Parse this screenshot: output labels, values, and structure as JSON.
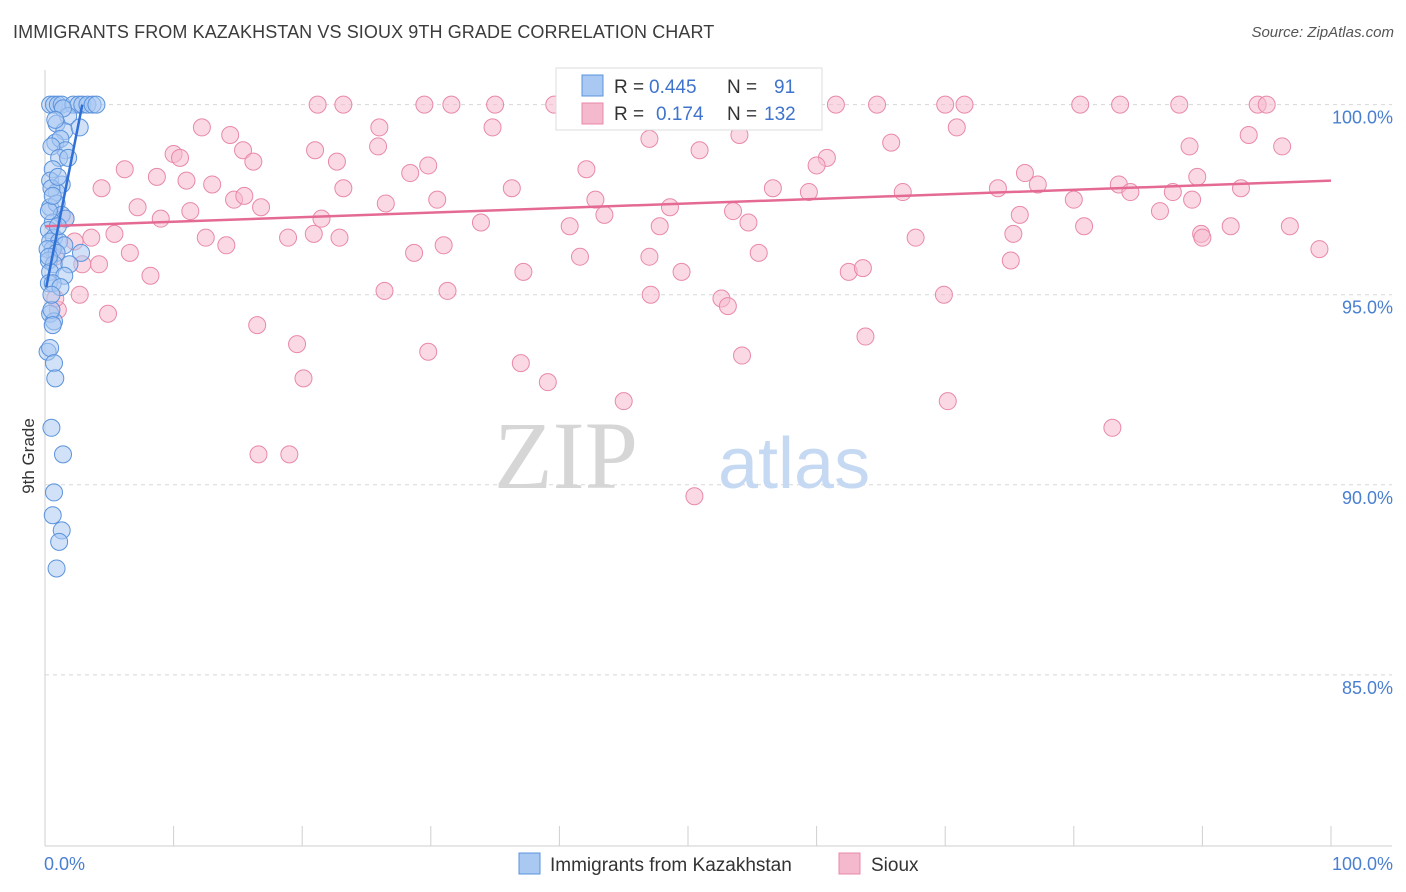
{
  "title": "IMMIGRANTS FROM KAZAKHSTAN VS SIOUX 9TH GRADE CORRELATION CHART",
  "source": "Source: ZipAtlas.com",
  "watermark": {
    "zip": "ZIP",
    "atlas": "atlas"
  },
  "colors": {
    "blue_fill": "#a9c8f2",
    "blue_stroke": "#5b93dc",
    "blue_line": "#2f70d6",
    "pink_fill": "#f5b9cd",
    "pink_stroke": "#e889a8",
    "pink_line": "#e46a94",
    "grid": "#d8d8d8",
    "axis_text": "#4a7fd0"
  },
  "legend": {
    "rows": [
      {
        "r_label": "R =",
        "r_value": "0.445",
        "n_label": "N =",
        "n_value": "91"
      },
      {
        "r_label": "R =",
        "r_value": "0.174",
        "n_label": "N =",
        "n_value": "132"
      }
    ]
  },
  "chart_data": {
    "type": "scatter",
    "title": "IMMIGRANTS FROM KAZAKHSTAN VS SIOUX 9TH GRADE CORRELATION CHART",
    "xlabel": "",
    "ylabel": "9th Grade",
    "xlim": [
      0,
      100
    ],
    "ylim": [
      80.5,
      100.7
    ],
    "x_tick_labels": [
      "0.0%",
      "100.0%"
    ],
    "y_ticks": [
      100,
      95,
      90,
      85
    ],
    "y_tick_labels": [
      "100.0%",
      "95.0%",
      "90.0%",
      "85.0%"
    ],
    "grid": "horizontal dashed",
    "legend_position": "top-center, bottom",
    "series": [
      {
        "name": "Immigrants from Kazakhstan",
        "R": 0.445,
        "N": 91,
        "trend": {
          "x": [
            0.1,
            2.9
          ],
          "y": [
            95.2,
            100.0
          ]
        },
        "points": [
          [
            0.4,
            100.0
          ],
          [
            0.7,
            100.0
          ],
          [
            1.0,
            100.0
          ],
          [
            1.3,
            100.0
          ],
          [
            2.2,
            100.0
          ],
          [
            2.6,
            100.0
          ],
          [
            2.9,
            100.0
          ],
          [
            3.3,
            100.0
          ],
          [
            3.7,
            100.0
          ],
          [
            4.0,
            100.0
          ],
          [
            1.8,
            99.7
          ],
          [
            0.9,
            99.5
          ],
          [
            1.5,
            99.3
          ],
          [
            2.7,
            99.4
          ],
          [
            0.8,
            99.0
          ],
          [
            1.2,
            99.1
          ],
          [
            1.6,
            98.8
          ],
          [
            0.5,
            98.9
          ],
          [
            1.1,
            98.6
          ],
          [
            1.8,
            98.6
          ],
          [
            0.6,
            98.3
          ],
          [
            0.4,
            98.0
          ],
          [
            1.3,
            97.9
          ],
          [
            0.9,
            97.7
          ],
          [
            0.5,
            97.8
          ],
          [
            0.4,
            97.3
          ],
          [
            0.9,
            97.4
          ],
          [
            1.3,
            97.1
          ],
          [
            1.6,
            97.0
          ],
          [
            0.6,
            96.9
          ],
          [
            0.3,
            96.7
          ],
          [
            0.7,
            96.5
          ],
          [
            0.4,
            96.4
          ],
          [
            1.1,
            96.4
          ],
          [
            1.5,
            96.3
          ],
          [
            0.6,
            96.2
          ],
          [
            0.2,
            96.2
          ],
          [
            0.9,
            96.1
          ],
          [
            2.8,
            96.1
          ],
          [
            0.3,
            95.9
          ],
          [
            0.7,
            95.8
          ],
          [
            1.9,
            95.8
          ],
          [
            0.4,
            95.6
          ],
          [
            1.5,
            95.5
          ],
          [
            0.3,
            95.3
          ],
          [
            0.6,
            95.3
          ],
          [
            1.2,
            95.2
          ],
          [
            0.4,
            94.5
          ],
          [
            0.7,
            94.3
          ],
          [
            0.5,
            94.6
          ],
          [
            0.6,
            94.2
          ],
          [
            0.2,
            93.5
          ],
          [
            0.4,
            93.6
          ],
          [
            0.7,
            93.2
          ],
          [
            0.8,
            92.8
          ],
          [
            0.5,
            91.5
          ],
          [
            1.4,
            90.8
          ],
          [
            0.7,
            89.8
          ],
          [
            0.6,
            89.2
          ],
          [
            1.3,
            88.8
          ],
          [
            1.1,
            88.5
          ],
          [
            0.9,
            87.8
          ],
          [
            0.3,
            97.2
          ],
          [
            1.0,
            98.1
          ],
          [
            0.3,
            96.0
          ],
          [
            1.0,
            96.8
          ],
          [
            0.6,
            97.6
          ],
          [
            1.4,
            99.9
          ],
          [
            0.5,
            95.0
          ],
          [
            0.8,
            99.6
          ]
        ]
      },
      {
        "name": "Sioux",
        "R": 0.174,
        "N": 132,
        "trend": {
          "x": [
            0,
            100
          ],
          "y": [
            96.8,
            98.0
          ]
        },
        "points": [
          [
            21.2,
            100.0
          ],
          [
            23.2,
            100.0
          ],
          [
            29.5,
            100.0
          ],
          [
            31.6,
            100.0
          ],
          [
            35.0,
            100.0
          ],
          [
            39.6,
            100.0
          ],
          [
            55.2,
            100.0
          ],
          [
            58.1,
            100.0
          ],
          [
            61.5,
            100.0
          ],
          [
            64.7,
            100.0
          ],
          [
            70.0,
            100.0
          ],
          [
            71.5,
            100.0
          ],
          [
            80.5,
            100.0
          ],
          [
            83.6,
            100.0
          ],
          [
            88.2,
            100.0
          ],
          [
            94.3,
            100.0
          ],
          [
            95.0,
            100.0
          ],
          [
            12.2,
            99.4
          ],
          [
            14.4,
            99.2
          ],
          [
            26.0,
            99.4
          ],
          [
            34.8,
            99.4
          ],
          [
            47.0,
            99.1
          ],
          [
            54.0,
            99.2
          ],
          [
            65.8,
            99.0
          ],
          [
            70.9,
            99.4
          ],
          [
            89.0,
            98.9
          ],
          [
            93.6,
            99.2
          ],
          [
            96.2,
            98.9
          ],
          [
            10.0,
            98.7
          ],
          [
            15.4,
            98.8
          ],
          [
            21.0,
            98.8
          ],
          [
            16.2,
            98.5
          ],
          [
            10.5,
            98.6
          ],
          [
            22.7,
            98.5
          ],
          [
            25.9,
            98.9
          ],
          [
            28.4,
            98.2
          ],
          [
            29.8,
            98.4
          ],
          [
            42.1,
            98.3
          ],
          [
            50.9,
            98.8
          ],
          [
            60.8,
            98.6
          ],
          [
            76.2,
            98.2
          ],
          [
            83.5,
            97.9
          ],
          [
            89.6,
            98.1
          ],
          [
            6.2,
            98.3
          ],
          [
            8.7,
            98.1
          ],
          [
            11.0,
            98.0
          ],
          [
            4.4,
            97.8
          ],
          [
            13.0,
            97.9
          ],
          [
            14.7,
            97.5
          ],
          [
            15.5,
            97.6
          ],
          [
            23.2,
            97.8
          ],
          [
            30.5,
            97.5
          ],
          [
            36.3,
            97.8
          ],
          [
            42.8,
            97.5
          ],
          [
            48.6,
            97.3
          ],
          [
            56.6,
            97.8
          ],
          [
            59.4,
            97.7
          ],
          [
            60.0,
            98.4
          ],
          [
            66.7,
            97.7
          ],
          [
            74.1,
            97.8
          ],
          [
            77.2,
            97.9
          ],
          [
            80.0,
            97.5
          ],
          [
            84.4,
            97.7
          ],
          [
            87.7,
            97.7
          ],
          [
            89.2,
            97.5
          ],
          [
            93.0,
            97.8
          ],
          [
            7.2,
            97.3
          ],
          [
            9.0,
            97.0
          ],
          [
            11.3,
            97.2
          ],
          [
            16.8,
            97.3
          ],
          [
            21.5,
            97.0
          ],
          [
            26.5,
            97.4
          ],
          [
            33.9,
            96.9
          ],
          [
            40.8,
            96.8
          ],
          [
            43.5,
            97.1
          ],
          [
            47.8,
            96.8
          ],
          [
            53.5,
            97.2
          ],
          [
            54.7,
            96.9
          ],
          [
            75.8,
            97.1
          ],
          [
            80.8,
            96.8
          ],
          [
            86.7,
            97.2
          ],
          [
            92.2,
            96.8
          ],
          [
            5.4,
            96.6
          ],
          [
            3.6,
            96.5
          ],
          [
            12.5,
            96.5
          ],
          [
            14.1,
            96.3
          ],
          [
            18.9,
            96.5
          ],
          [
            20.9,
            96.6
          ],
          [
            22.9,
            96.5
          ],
          [
            28.7,
            96.1
          ],
          [
            31.0,
            96.3
          ],
          [
            41.6,
            96.0
          ],
          [
            47.0,
            96.0
          ],
          [
            55.5,
            96.1
          ],
          [
            67.7,
            96.5
          ],
          [
            75.3,
            96.6
          ],
          [
            89.9,
            96.6
          ],
          [
            90.0,
            96.5
          ],
          [
            96.8,
            96.8
          ],
          [
            99.1,
            96.2
          ],
          [
            0.8,
            96.0
          ],
          [
            4.2,
            95.8
          ],
          [
            6.6,
            96.1
          ],
          [
            8.2,
            95.5
          ],
          [
            37.2,
            95.6
          ],
          [
            49.5,
            95.6
          ],
          [
            62.5,
            95.6
          ],
          [
            63.6,
            95.7
          ],
          [
            75.1,
            95.9
          ],
          [
            26.4,
            95.1
          ],
          [
            31.3,
            95.1
          ],
          [
            47.1,
            95.0
          ],
          [
            52.6,
            94.9
          ],
          [
            53.1,
            94.7
          ],
          [
            69.9,
            95.0
          ],
          [
            1.0,
            94.6
          ],
          [
            0.8,
            94.9
          ],
          [
            2.7,
            95.0
          ],
          [
            4.9,
            94.5
          ],
          [
            16.5,
            94.2
          ],
          [
            19.6,
            93.7
          ],
          [
            29.8,
            93.5
          ],
          [
            37.0,
            93.2
          ],
          [
            54.2,
            93.4
          ],
          [
            63.8,
            93.9
          ],
          [
            20.1,
            92.8
          ],
          [
            39.1,
            92.7
          ],
          [
            45.0,
            92.2
          ],
          [
            70.2,
            92.2
          ],
          [
            16.6,
            90.8
          ],
          [
            19.0,
            90.8
          ],
          [
            83.0,
            91.5
          ],
          [
            50.5,
            89.7
          ],
          [
            2.3,
            96.4
          ],
          [
            2.9,
            95.8
          ],
          [
            1.6,
            97.0
          ]
        ]
      }
    ]
  }
}
